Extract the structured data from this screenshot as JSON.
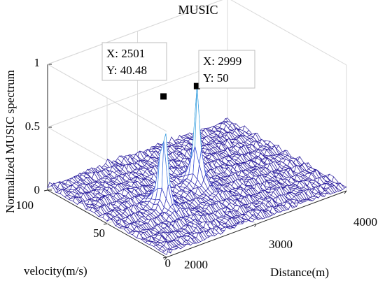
{
  "chart_data": {
    "type": "surface",
    "title": "MUSIC",
    "xlabel": "Distance(m)",
    "ylabel": "velocity(m/s)",
    "zlabel": "Normalized MUSIC spectrum",
    "x_ticks": [
      "2000",
      "3000",
      "4000"
    ],
    "y_ticks": [
      "0",
      "50",
      "100"
    ],
    "z_ticks": [
      "0",
      "0.5",
      "1"
    ],
    "xlim": [
      2000,
      4000
    ],
    "ylim": [
      0,
      100
    ],
    "zlim": [
      0,
      1
    ],
    "grid": true,
    "peaks": [
      {
        "x": 2501,
        "y": 40.48,
        "z": 0.93
      },
      {
        "x": 2999,
        "y": 50,
        "z": 0.83
      }
    ],
    "datatips": [
      {
        "x_text": "X: 2501",
        "y_text": "Y: 40.48"
      },
      {
        "x_text": "X: 2999",
        "y_text": "Y: 50"
      }
    ],
    "colormap": [
      "#26118f",
      "#3a48d6",
      "#3c8fe6",
      "#34c4cf",
      "#9fe07a",
      "#f2ea3a"
    ]
  }
}
